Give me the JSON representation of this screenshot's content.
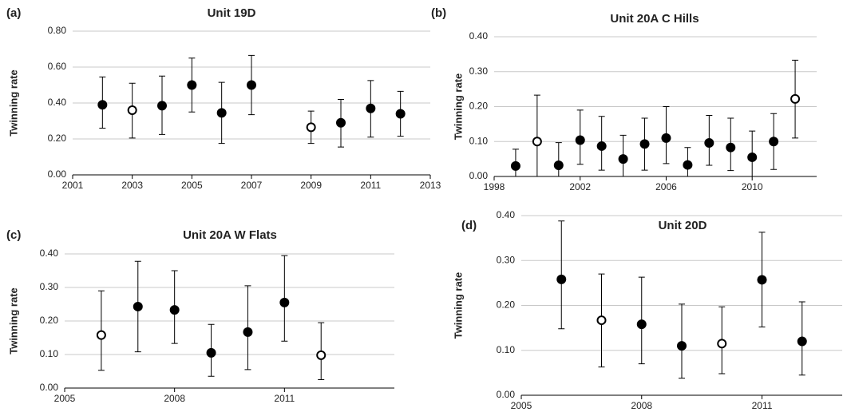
{
  "chart_data": [
    {
      "type": "scatter",
      "panel_label": "(a)",
      "title": "Unit 19D",
      "y_label": "Twinning rate",
      "x": [
        2002,
        2003,
        2004,
        2005,
        2006,
        2007,
        2009,
        2010,
        2011,
        2012
      ],
      "values": [
        0.39,
        0.36,
        0.385,
        0.5,
        0.345,
        0.5,
        0.265,
        0.29,
        0.37,
        0.34
      ],
      "lower": [
        0.26,
        0.205,
        0.225,
        0.35,
        0.175,
        0.335,
        0.175,
        0.155,
        0.21,
        0.215
      ],
      "upper": [
        0.545,
        0.51,
        0.55,
        0.65,
        0.515,
        0.665,
        0.355,
        0.42,
        0.525,
        0.465
      ],
      "filled": [
        true,
        false,
        true,
        true,
        true,
        true,
        false,
        true,
        true,
        true
      ],
      "color": "#000000",
      "grid": true,
      "xlim": [
        2001,
        2013
      ],
      "xticks": [
        2001,
        2003,
        2005,
        2007,
        2009,
        2011,
        2013
      ],
      "ylim": [
        0,
        0.8
      ],
      "yticks": [
        {
          "value": 0,
          "label": "0.00"
        },
        {
          "value": 0.2,
          "label": "0.20"
        },
        {
          "value": 0.4,
          "label": "0.40"
        },
        {
          "value": 0.6,
          "label": "0.60"
        },
        {
          "value": 0.8,
          "label": "0.80"
        }
      ]
    },
    {
      "type": "scatter",
      "panel_label": "(b)",
      "title": "Unit 20A C Hills",
      "y_label": "Twinning rate",
      "x": [
        1999,
        2000,
        2001,
        2002,
        2003,
        2004,
        2005,
        2006,
        2007,
        2008,
        2009,
        2010,
        2011,
        2012
      ],
      "values": [
        0.03,
        0.1,
        0.032,
        0.104,
        0.087,
        0.05,
        0.093,
        0.11,
        0.033,
        0.096,
        0.083,
        0.055,
        0.1,
        0.222
      ],
      "lower": [
        0,
        0,
        0,
        0.035,
        0.018,
        0,
        0.018,
        0.037,
        0,
        0.032,
        0.017,
        0,
        0.02,
        0.11
      ],
      "upper": [
        0.078,
        0.233,
        0.097,
        0.19,
        0.172,
        0.118,
        0.167,
        0.2,
        0.083,
        0.175,
        0.167,
        0.13,
        0.18,
        0.333
      ],
      "filled": [
        true,
        false,
        true,
        true,
        true,
        true,
        true,
        true,
        true,
        true,
        true,
        true,
        true,
        false
      ],
      "color": "#000000",
      "grid": true,
      "xlim": [
        1998,
        2013
      ],
      "xticks": [
        1998,
        2002,
        2006,
        2010
      ],
      "ylim": [
        0,
        0.4
      ],
      "yticks": [
        {
          "value": 0,
          "label": "0.00"
        },
        {
          "value": 0.1,
          "label": "0.10"
        },
        {
          "value": 0.2,
          "label": "0.20"
        },
        {
          "value": 0.3,
          "label": "0.30"
        },
        {
          "value": 0.4,
          "label": "0.40"
        }
      ]
    },
    {
      "type": "scatter",
      "panel_label": "(c)",
      "title": "Unit 20A W Flats",
      "y_label": "Twinning rate",
      "x": [
        2006,
        2007,
        2008,
        2009,
        2010,
        2011,
        2012
      ],
      "values": [
        0.158,
        0.243,
        0.233,
        0.105,
        0.167,
        0.255,
        0.098
      ],
      "lower": [
        0.053,
        0.108,
        0.133,
        0.035,
        0.055,
        0.14,
        0.025
      ],
      "upper": [
        0.29,
        0.378,
        0.35,
        0.19,
        0.305,
        0.395,
        0.195
      ],
      "filled": [
        false,
        true,
        true,
        true,
        true,
        true,
        false
      ],
      "color": "#000000",
      "grid": true,
      "xlim": [
        2005,
        2014
      ],
      "xticks": [
        2005,
        2008,
        2011
      ],
      "ylim": [
        0,
        0.4
      ],
      "yticks": [
        {
          "value": 0,
          "label": "0.00"
        },
        {
          "value": 0.1,
          "label": "0.10"
        },
        {
          "value": 0.2,
          "label": "0.20"
        },
        {
          "value": 0.3,
          "label": "0.30"
        },
        {
          "value": 0.4,
          "label": "0.40"
        }
      ]
    },
    {
      "type": "scatter",
      "panel_label": "(d)",
      "title": "Unit 20D",
      "y_label": "Twinning rate",
      "x": [
        2006,
        2007,
        2008,
        2009,
        2010,
        2011,
        2012
      ],
      "values": [
        0.258,
        0.167,
        0.158,
        0.11,
        0.115,
        0.257,
        0.12
      ],
      "lower": [
        0.148,
        0.063,
        0.07,
        0.038,
        0.048,
        0.152,
        0.045
      ],
      "upper": [
        0.388,
        0.27,
        0.263,
        0.203,
        0.197,
        0.363,
        0.208
      ],
      "filled": [
        true,
        false,
        true,
        true,
        false,
        true,
        true
      ],
      "color": "#000000",
      "grid": true,
      "xlim": [
        2005,
        2013
      ],
      "xticks": [
        2005,
        2008,
        2011
      ],
      "ylim": [
        0,
        0.4
      ],
      "yticks": [
        {
          "value": 0,
          "label": "0.00"
        },
        {
          "value": 0.1,
          "label": "0.10"
        },
        {
          "value": 0.2,
          "label": "0.20"
        },
        {
          "value": 0.3,
          "label": "0.30"
        },
        {
          "value": 0.4,
          "label": "0.40"
        }
      ]
    }
  ]
}
